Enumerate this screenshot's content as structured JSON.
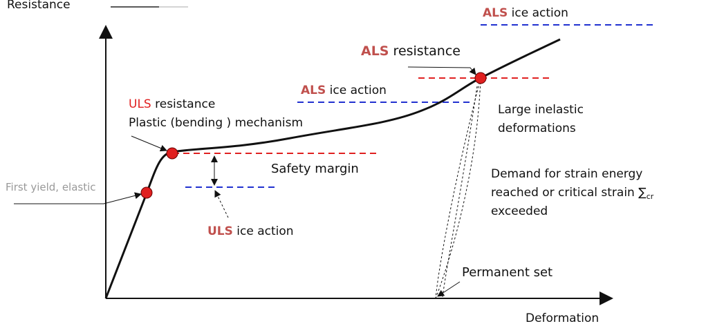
{
  "axes": {
    "y_label": "Resistance",
    "x_label": "Deformation"
  },
  "labels": {
    "als_ice_top": {
      "code": "ALS",
      "text": "ice action"
    },
    "als_resistance": {
      "code": "ALS",
      "text": "resistance"
    },
    "als_ice_mid": {
      "code": "ALS",
      "text": "ice action"
    },
    "uls_resistance": {
      "code": "ULS",
      "text": "resistance"
    },
    "plastic": "Plastic (bending ) mechanism",
    "large_inelastic": [
      "Large inelastic",
      "deformations"
    ],
    "safety_margin": "Safety margin",
    "first_yield": "First yield, elastic",
    "demand": {
      "lines": [
        "Demand for strain energy",
        "reached or critical strain"
      ],
      "symbol": "∑",
      "sub": "cr",
      "last": "exceeded"
    },
    "uls_ice": {
      "code": "ULS",
      "text": "ice action"
    },
    "permanent_set": "Permanent set"
  }
}
